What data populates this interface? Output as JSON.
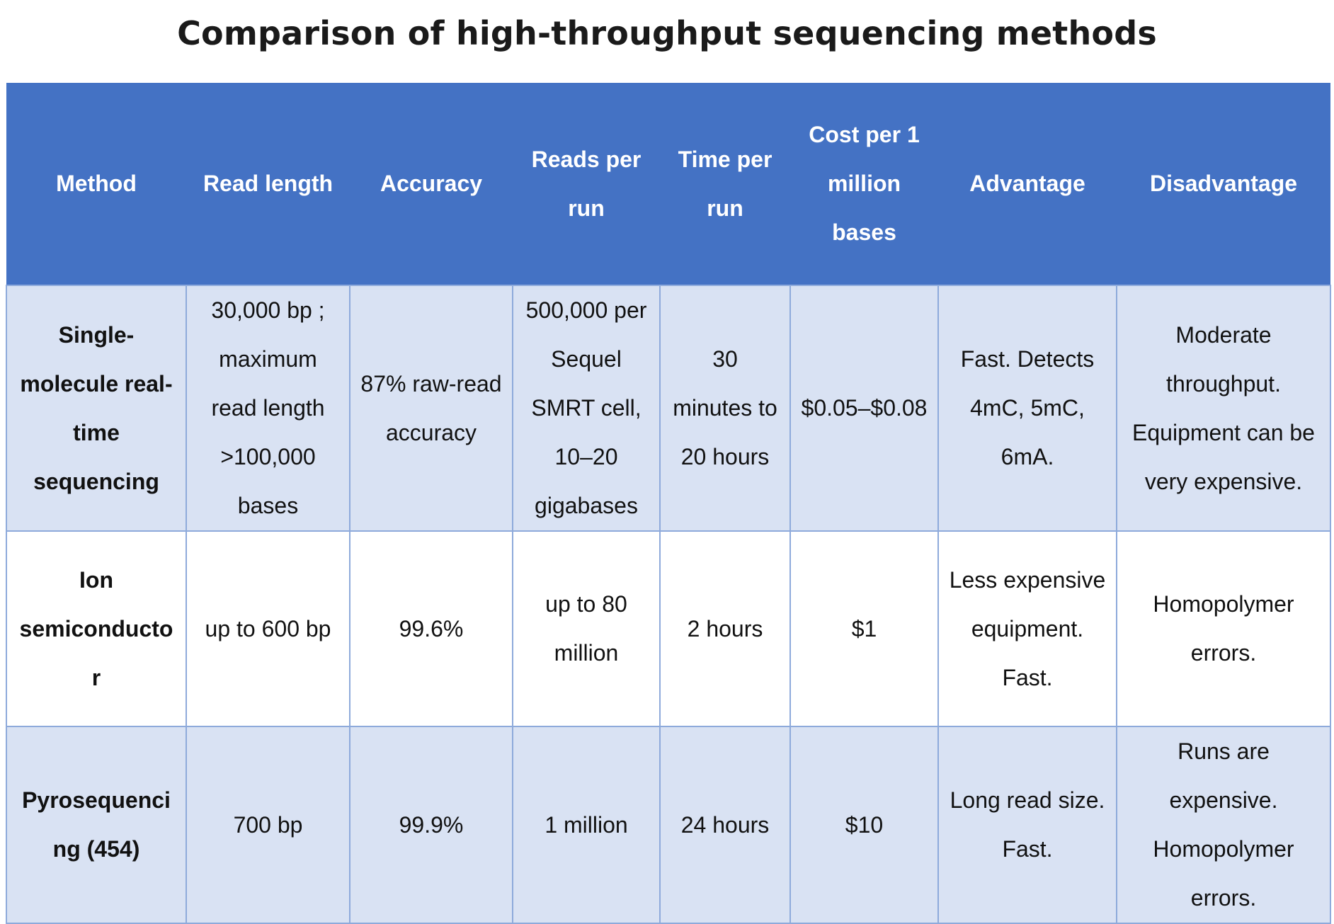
{
  "title": "Comparison of high-throughput sequencing methods",
  "table": {
    "header": [
      "Method",
      "Read length",
      "Accuracy",
      "Reads per run",
      "Time per run",
      "Cost per 1 million bases",
      "Advantage",
      "Disadvantage"
    ],
    "rows": [
      [
        "Single-molecule real-time sequencing",
        "30,000 bp ; maximum read length >100,000 bases",
        "87% raw-read accuracy",
        "500,000 per Sequel SMRT cell, 10–20 gigabases",
        "30 minutes to 20 hours",
        "$0.05–$0.08",
        "Fast. Detects 4mC, 5mC, 6mA.",
        "Moderate throughput. Equipment can be very expensive."
      ],
      [
        "Ion semiconductor",
        "up to 600 bp",
        "99.6%",
        "up to 80 million",
        "2 hours",
        "$1",
        "Less expensive equipment. Fast.",
        "Homopolymer errors."
      ],
      [
        "Pyrosequencing (454)",
        "700 bp",
        "99.9%",
        "1 million",
        "24 hours",
        "$10",
        "Long read size. Fast.",
        "Runs are expensive. Homopolymer errors."
      ]
    ]
  }
}
